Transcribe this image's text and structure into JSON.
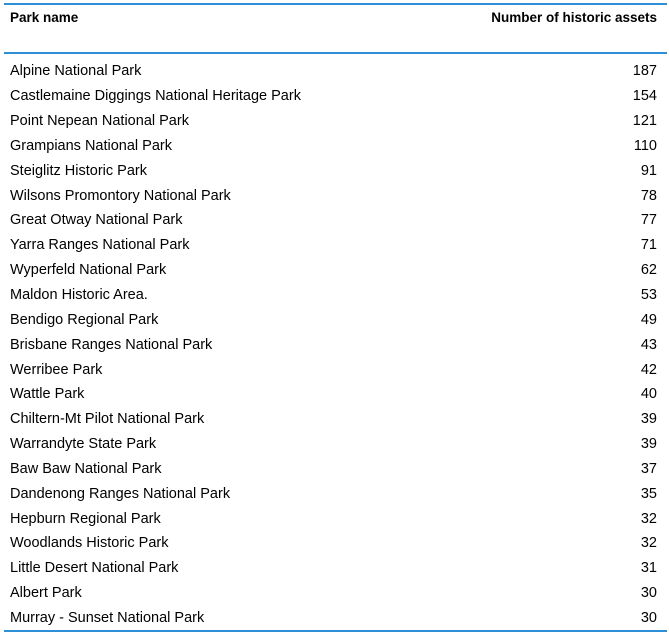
{
  "table": {
    "headers": {
      "name": "Park name",
      "count": "Number of historic assets"
    },
    "rows": [
      {
        "name": "Alpine National Park",
        "count": "187"
      },
      {
        "name": "Castlemaine Diggings National Heritage Park",
        "count": "154"
      },
      {
        "name": "Point Nepean National Park",
        "count": "121"
      },
      {
        "name": "Grampians National Park",
        "count": "110"
      },
      {
        "name": "Steiglitz Historic Park",
        "count": "91"
      },
      {
        "name": "Wilsons Promontory National Park",
        "count": "78"
      },
      {
        "name": "Great Otway National Park",
        "count": "77"
      },
      {
        "name": "Yarra Ranges National Park",
        "count": "71"
      },
      {
        "name": "Wyperfeld National Park",
        "count": "62"
      },
      {
        "name": "Maldon Historic Area.",
        "count": "53"
      },
      {
        "name": "Bendigo Regional Park",
        "count": "49"
      },
      {
        "name": "Brisbane Ranges National Park",
        "count": "43"
      },
      {
        "name": "Werribee Park",
        "count": "42"
      },
      {
        "name": "Wattle Park",
        "count": "40"
      },
      {
        "name": "Chiltern-Mt Pilot National Park",
        "count": "39"
      },
      {
        "name": "Warrandyte State Park",
        "count": "39"
      },
      {
        "name": "Baw Baw National Park",
        "count": "37"
      },
      {
        "name": "Dandenong Ranges National Park",
        "count": "35"
      },
      {
        "name": "Hepburn Regional Park",
        "count": "32"
      },
      {
        "name": "Woodlands Historic Park",
        "count": "32"
      },
      {
        "name": "Little Desert National Park",
        "count": "31"
      },
      {
        "name": "Albert Park",
        "count": "30"
      },
      {
        "name": "Murray - Sunset National Park",
        "count": "30"
      }
    ]
  },
  "colors": {
    "rule": "#2f8fd6",
    "text": "#000000"
  }
}
